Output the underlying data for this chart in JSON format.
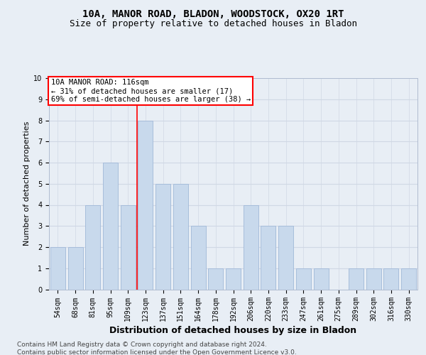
{
  "title_line1": "10A, MANOR ROAD, BLADON, WOODSTOCK, OX20 1RT",
  "title_line2": "Size of property relative to detached houses in Bladon",
  "xlabel": "Distribution of detached houses by size in Bladon",
  "ylabel": "Number of detached properties",
  "categories": [
    "54sqm",
    "68sqm",
    "81sqm",
    "95sqm",
    "109sqm",
    "123sqm",
    "137sqm",
    "151sqm",
    "164sqm",
    "178sqm",
    "192sqm",
    "206sqm",
    "220sqm",
    "233sqm",
    "247sqm",
    "261sqm",
    "275sqm",
    "289sqm",
    "302sqm",
    "316sqm",
    "330sqm"
  ],
  "values": [
    2,
    2,
    4,
    6,
    4,
    8,
    5,
    5,
    3,
    1,
    1,
    4,
    3,
    3,
    1,
    1,
    0,
    1,
    1,
    1,
    1
  ],
  "bar_color": "#c8d9ec",
  "bar_edge_color": "#a0b8d8",
  "red_line_index": 4,
  "red_line_label": "10A MANOR ROAD: 116sqm",
  "annotation_line2": "← 31% of detached houses are smaller (17)",
  "annotation_line3": "69% of semi-detached houses are larger (38) →",
  "ylim": [
    0,
    10
  ],
  "yticks": [
    0,
    1,
    2,
    3,
    4,
    5,
    6,
    7,
    8,
    9,
    10
  ],
  "grid_color": "#d0d8e4",
  "background_color": "#e8eef5",
  "plot_bg_color": "#e8eef5",
  "footnote_line1": "Contains HM Land Registry data © Crown copyright and database right 2024.",
  "footnote_line2": "Contains public sector information licensed under the Open Government Licence v3.0.",
  "title_fontsize": 10,
  "subtitle_fontsize": 9,
  "ylabel_fontsize": 8,
  "xlabel_fontsize": 9,
  "tick_fontsize": 7,
  "annotation_fontsize": 7.5,
  "footnote_fontsize": 6.5
}
